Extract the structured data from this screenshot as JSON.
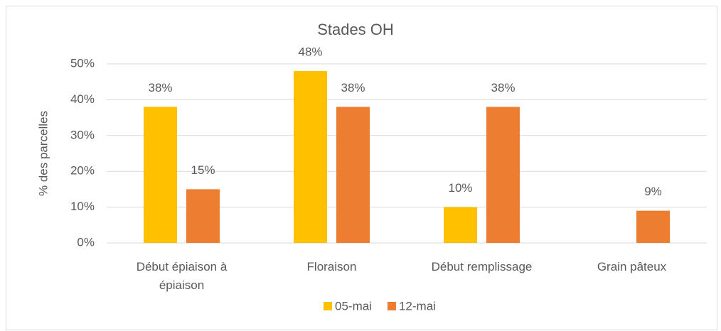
{
  "chart_data": {
    "type": "bar",
    "title": "Stades OH",
    "y_label": "% des parcelles",
    "categories": [
      "Début épiaison à épiaison",
      "Floraison",
      "Début remplissage",
      "Grain pâteux"
    ],
    "series": [
      {
        "name": "05-mai",
        "color": "#ffc000",
        "values": [
          38,
          48,
          10,
          null
        ],
        "value_labels": [
          "38%",
          "48%",
          "10%",
          null
        ]
      },
      {
        "name": "12-mai",
        "color": "#ed7d31",
        "values": [
          15,
          38,
          38,
          9
        ],
        "value_labels": [
          "15%",
          "38%",
          "38%",
          "9%"
        ]
      }
    ],
    "ylim": [
      0,
      50
    ],
    "yticks": [
      {
        "value": 0,
        "label": "0%"
      },
      {
        "value": 10,
        "label": "10%"
      },
      {
        "value": 20,
        "label": "20%"
      },
      {
        "value": 30,
        "label": "30%"
      },
      {
        "value": 40,
        "label": "40%"
      },
      {
        "value": 50,
        "label": "50%"
      }
    ],
    "grid": true,
    "legend": "bottom"
  }
}
